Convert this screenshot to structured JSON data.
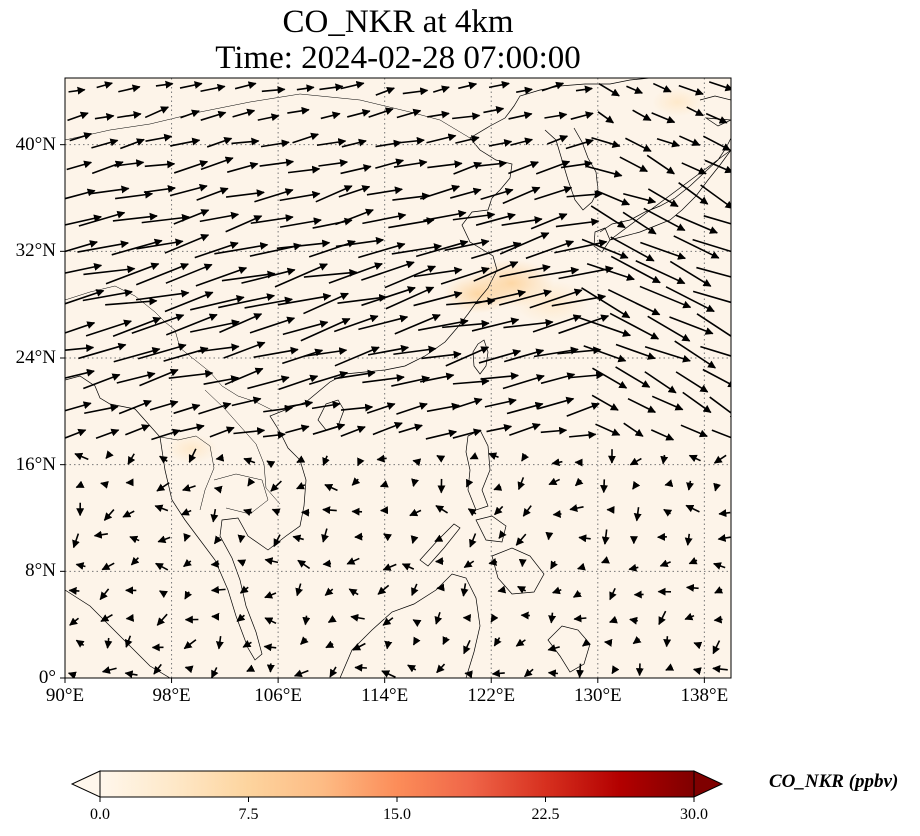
{
  "title": {
    "line1": "CO_NKR at 4km",
    "line2": "Time: 2024-02-28 07:00:00"
  },
  "map": {
    "extent": {
      "lon_min": 90,
      "lon_max": 140,
      "lat_min": 0,
      "lat_max": 45
    },
    "lat_ticks": [
      {
        "value": 0,
        "label": "0°"
      },
      {
        "value": 8,
        "label": "8°N"
      },
      {
        "value": 16,
        "label": "16°N"
      },
      {
        "value": 24,
        "label": "24°N"
      },
      {
        "value": 32,
        "label": "32°N"
      },
      {
        "value": 40,
        "label": "40°N"
      }
    ],
    "lon_ticks": [
      {
        "value": 90,
        "label": "90°E"
      },
      {
        "value": 98,
        "label": "98°E"
      },
      {
        "value": 106,
        "label": "106°E"
      },
      {
        "value": 114,
        "label": "114°E"
      },
      {
        "value": 122,
        "label": "122°E"
      },
      {
        "value": 130,
        "label": "130°E"
      },
      {
        "value": 138,
        "label": "138°E"
      }
    ],
    "gridlines": "dotted",
    "field_background": "#fdf4e9",
    "features": [
      "coastlines",
      "country borders",
      "wind vectors"
    ]
  },
  "co_plumes": [
    {
      "lon": 123.5,
      "lat": 29.6,
      "value": 9,
      "spread": 2.0
    },
    {
      "lon": 121.0,
      "lat": 28.8,
      "value": 6,
      "spread": 1.6
    },
    {
      "lon": 126.5,
      "lat": 28.2,
      "value": 4,
      "spread": 1.8
    },
    {
      "lon": 99.5,
      "lat": 17.2,
      "value": 3,
      "spread": 1.2
    },
    {
      "lon": 136.0,
      "lat": 43.2,
      "value": 2.5,
      "spread": 1.2
    }
  ],
  "colorbar": {
    "label": "CO_NKR (ppbv)",
    "min": 0,
    "max": 30,
    "ticks": [
      "0.0",
      "7.5",
      "15.0",
      "22.5",
      "30.0"
    ],
    "colormap": [
      "#fff7ec",
      "#fee8c8",
      "#fdd49e",
      "#fdbb84",
      "#fc8d59",
      "#ef6548",
      "#d7301f",
      "#b30000",
      "#7f0000"
    ],
    "extend": "both"
  }
}
